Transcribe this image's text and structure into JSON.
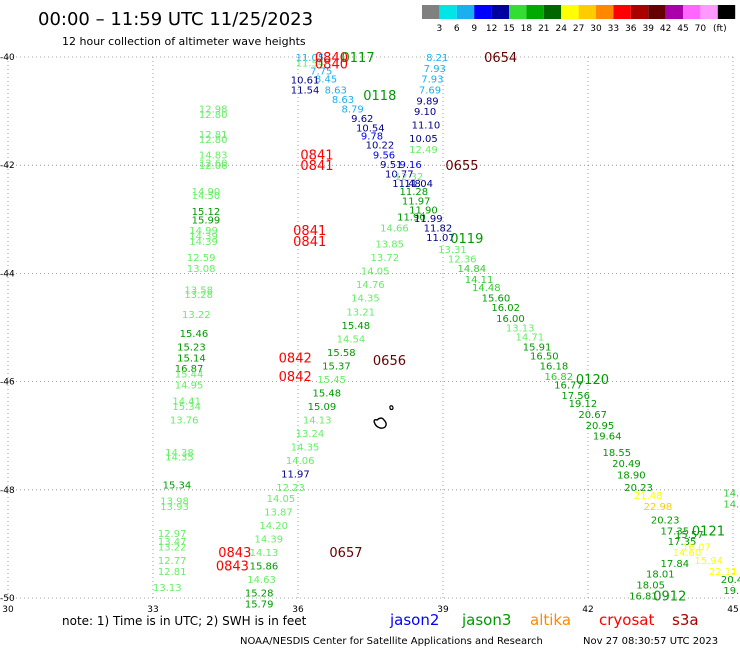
{
  "header": {
    "title": "00:00 – 11:59 UTC 11/25/2023",
    "subtitle": "12 hour collection of altimeter wave heights"
  },
  "legend": {
    "colors": [
      "#808080",
      "#00e5e5",
      "#1ab0f0",
      "#0000ff",
      "#0000a0",
      "#33dd33",
      "#00aa00",
      "#006600",
      "#ffff00",
      "#ffcc00",
      "#ff8800",
      "#ff0000",
      "#aa0000",
      "#660000",
      "#aa00aa",
      "#ff66ff",
      "#ff99ff",
      "#000000"
    ],
    "labels": [
      "3",
      "6",
      "9",
      "12",
      "15",
      "18",
      "21",
      "24",
      "27",
      "30",
      "33",
      "36",
      "39",
      "42",
      "45",
      "70",
      "(ft)"
    ]
  },
  "axes": {
    "x_ticks": [
      "30",
      "33",
      "36",
      "39",
      "42",
      "45"
    ],
    "y_ticks": [
      "-40",
      "-42",
      "-44",
      "-46",
      "-48",
      "-50"
    ]
  },
  "color_scale": {
    "c1": "#1ab0f0",
    "c2": "#0000ff",
    "c3": "#00008b",
    "c4": "#66ee66",
    "c5": "#33cc33",
    "c6": "#009900",
    "c7": "#ffff00",
    "c8": "#ffcc00",
    "c9": "#ff0000",
    "c10": "#660000"
  },
  "map": {
    "land_feature": "island",
    "wave_labels": [
      {
        "t": "11.05",
        "lon": 35.95,
        "lat": -40.0,
        "c": "c1"
      },
      {
        "t": "11.54",
        "lon": 35.95,
        "lat": -40.1,
        "c": "c4"
      },
      {
        "t": "7.75",
        "lon": 36.25,
        "lat": -40.25,
        "c": "c1"
      },
      {
        "t": "8.45",
        "lon": 36.35,
        "lat": -40.4,
        "c": "c1"
      },
      {
        "t": "10.61",
        "lon": 35.85,
        "lat": -40.42,
        "c": "c3"
      },
      {
        "t": "11.54",
        "lon": 35.85,
        "lat": -40.6,
        "c": "c3"
      },
      {
        "t": "8.63",
        "lon": 36.55,
        "lat": -40.6,
        "c": "c1"
      },
      {
        "t": "8.63",
        "lon": 36.7,
        "lat": -40.78,
        "c": "c1"
      },
      {
        "t": "8.79",
        "lon": 36.9,
        "lat": -40.95,
        "c": "c1"
      },
      {
        "t": "9.62",
        "lon": 37.1,
        "lat": -41.13,
        "c": "c3"
      },
      {
        "t": "10.54",
        "lon": 37.2,
        "lat": -41.3,
        "c": "c3"
      },
      {
        "t": "9.78",
        "lon": 37.3,
        "lat": -41.45,
        "c": "c2"
      },
      {
        "t": "10.22",
        "lon": 37.4,
        "lat": -41.62,
        "c": "c3"
      },
      {
        "t": "9.56",
        "lon": 37.55,
        "lat": -41.8,
        "c": "c2"
      },
      {
        "t": "9.51",
        "lon": 37.7,
        "lat": -41.98,
        "c": "c3"
      },
      {
        "t": "10.77",
        "lon": 37.8,
        "lat": -42.15,
        "c": "c3"
      },
      {
        "t": "11.48",
        "lon": 37.95,
        "lat": -42.33,
        "c": "c3"
      },
      {
        "t": "11.04",
        "lon": 38.2,
        "lat": -42.33,
        "c": "c3"
      },
      {
        "t": "11.28",
        "lon": 38.1,
        "lat": -42.48,
        "c": "c6"
      },
      {
        "t": "11.97",
        "lon": 38.15,
        "lat": -42.65,
        "c": "c6"
      },
      {
        "t": "11.90",
        "lon": 38.3,
        "lat": -42.82,
        "c": "c6"
      },
      {
        "t": "11.90",
        "lon": 38.05,
        "lat": -42.95,
        "c": "c6"
      },
      {
        "t": "11.99",
        "lon": 38.4,
        "lat": -42.98,
        "c": "c3"
      },
      {
        "t": "11.82",
        "lon": 38.6,
        "lat": -43.15,
        "c": "c3"
      },
      {
        "t": "14.66",
        "lon": 37.7,
        "lat": -43.15,
        "c": "c4"
      },
      {
        "t": "11.07",
        "lon": 38.65,
        "lat": -43.33,
        "c": "c3"
      },
      {
        "t": "13.85",
        "lon": 37.6,
        "lat": -43.45,
        "c": "c4"
      },
      {
        "t": "13.72",
        "lon": 37.5,
        "lat": -43.7,
        "c": "c4"
      },
      {
        "t": "13.31",
        "lon": 38.9,
        "lat": -43.55,
        "c": "c4"
      },
      {
        "t": "12.36",
        "lon": 39.1,
        "lat": -43.72,
        "c": "c4"
      },
      {
        "t": "14.05",
        "lon": 37.3,
        "lat": -43.95,
        "c": "c4"
      },
      {
        "t": "14.84",
        "lon": 39.3,
        "lat": -43.9,
        "c": "c5"
      },
      {
        "t": "14.11",
        "lon": 39.45,
        "lat": -44.1,
        "c": "c5"
      },
      {
        "t": "14.76",
        "lon": 37.2,
        "lat": -44.2,
        "c": "c4"
      },
      {
        "t": "14.48",
        "lon": 39.6,
        "lat": -44.25,
        "c": "c5"
      },
      {
        "t": "14.35",
        "lon": 37.1,
        "lat": -44.45,
        "c": "c4"
      },
      {
        "t": "15.60",
        "lon": 39.8,
        "lat": -44.45,
        "c": "c6"
      },
      {
        "t": "13.21",
        "lon": 37.0,
        "lat": -44.7,
        "c": "c4"
      },
      {
        "t": "16.02",
        "lon": 40.0,
        "lat": -44.62,
        "c": "c6"
      },
      {
        "t": "15.48",
        "lon": 36.9,
        "lat": -44.95,
        "c": "c6"
      },
      {
        "t": "16.00",
        "lon": 40.1,
        "lat": -44.82,
        "c": "c6"
      },
      {
        "t": "13.13",
        "lon": 40.3,
        "lat": -45.0,
        "c": "c4"
      },
      {
        "t": "14.54",
        "lon": 36.8,
        "lat": -45.2,
        "c": "c4"
      },
      {
        "t": "14.71",
        "lon": 40.5,
        "lat": -45.17,
        "c": "c4"
      },
      {
        "t": "15.58",
        "lon": 36.6,
        "lat": -45.45,
        "c": "c6"
      },
      {
        "t": "15.91",
        "lon": 40.65,
        "lat": -45.35,
        "c": "c6"
      },
      {
        "t": "15.37",
        "lon": 36.5,
        "lat": -45.7,
        "c": "c6"
      },
      {
        "t": "16.50",
        "lon": 40.8,
        "lat": -45.52,
        "c": "c6"
      },
      {
        "t": "15.45",
        "lon": 36.4,
        "lat": -45.95,
        "c": "c4"
      },
      {
        "t": "16.18",
        "lon": 41.0,
        "lat": -45.7,
        "c": "c6"
      },
      {
        "t": "16.82",
        "lon": 41.1,
        "lat": -45.9,
        "c": "c5"
      },
      {
        "t": "15.48",
        "lon": 36.3,
        "lat": -46.2,
        "c": "c6"
      },
      {
        "t": "16.77",
        "lon": 41.3,
        "lat": -46.05,
        "c": "c6"
      },
      {
        "t": "15.09",
        "lon": 36.2,
        "lat": -46.45,
        "c": "c6"
      },
      {
        "t": "17.56",
        "lon": 41.45,
        "lat": -46.25,
        "c": "c6"
      },
      {
        "t": "14.13",
        "lon": 36.1,
        "lat": -46.7,
        "c": "c4"
      },
      {
        "t": "19.12",
        "lon": 41.6,
        "lat": -46.4,
        "c": "c6"
      },
      {
        "t": "20.67",
        "lon": 41.8,
        "lat": -46.6,
        "c": "c6"
      },
      {
        "t": "13.24",
        "lon": 35.95,
        "lat": -46.95,
        "c": "c4"
      },
      {
        "t": "20.95",
        "lon": 41.95,
        "lat": -46.8,
        "c": "c6"
      },
      {
        "t": "14.35",
        "lon": 35.85,
        "lat": -47.2,
        "c": "c4"
      },
      {
        "t": "19.64",
        "lon": 42.1,
        "lat": -47.0,
        "c": "c6"
      },
      {
        "t": "14.06",
        "lon": 35.75,
        "lat": -47.45,
        "c": "c4"
      },
      {
        "t": "18.55",
        "lon": 42.3,
        "lat": -47.3,
        "c": "c6"
      },
      {
        "t": "11.97",
        "lon": 35.65,
        "lat": -47.7,
        "c": "c3"
      },
      {
        "t": "20.49",
        "lon": 42.5,
        "lat": -47.5,
        "c": "c6"
      },
      {
        "t": "12.23",
        "lon": 35.55,
        "lat": -47.95,
        "c": "c4"
      },
      {
        "t": "18.90",
        "lon": 42.6,
        "lat": -47.72,
        "c": "c6"
      },
      {
        "t": "14.05",
        "lon": 35.35,
        "lat": -48.15,
        "c": "c4"
      },
      {
        "t": "20.23",
        "lon": 42.75,
        "lat": -47.95,
        "c": "c6"
      },
      {
        "t": "13.87",
        "lon": 35.3,
        "lat": -48.4,
        "c": "c4"
      },
      {
        "t": "21.48",
        "lon": 42.95,
        "lat": -48.1,
        "c": "c7"
      },
      {
        "t": "22.98",
        "lon": 43.15,
        "lat": -48.3,
        "c": "c8"
      },
      {
        "t": "14.20",
        "lon": 35.2,
        "lat": -48.65,
        "c": "c4"
      },
      {
        "t": "20.23",
        "lon": 43.3,
        "lat": -48.55,
        "c": "c6"
      },
      {
        "t": "14.39",
        "lon": 35.1,
        "lat": -48.9,
        "c": "c4"
      },
      {
        "t": "17.35",
        "lon": 43.5,
        "lat": -48.75,
        "c": "c6"
      },
      {
        "t": "15.57",
        "lon": 43.8,
        "lat": -48.82,
        "c": "c6"
      },
      {
        "t": "14.13",
        "lon": 35.0,
        "lat": -49.15,
        "c": "c4"
      },
      {
        "t": "17.35",
        "lon": 43.65,
        "lat": -48.95,
        "c": "c6"
      },
      {
        "t": "16.07",
        "lon": 43.95,
        "lat": -49.05,
        "c": "c7"
      },
      {
        "t": "15.86",
        "lon": 35.0,
        "lat": -49.4,
        "c": "c6"
      },
      {
        "t": "14.60",
        "lon": 43.75,
        "lat": -49.15,
        "c": "c7"
      },
      {
        "t": "14.63",
        "lon": 34.95,
        "lat": -49.65,
        "c": "c4"
      },
      {
        "t": "17.84",
        "lon": 43.5,
        "lat": -49.35,
        "c": "c6"
      },
      {
        "t": "15.94",
        "lon": 44.2,
        "lat": -49.3,
        "c": "c7"
      },
      {
        "t": "18.01",
        "lon": 43.2,
        "lat": -49.55,
        "c": "c6"
      },
      {
        "t": "15.28",
        "lon": 34.9,
        "lat": -49.9,
        "c": "c6"
      },
      {
        "t": "22.11",
        "lon": 44.5,
        "lat": -49.5,
        "c": "c7"
      },
      {
        "t": "18.05",
        "lon": 43.0,
        "lat": -49.75,
        "c": "c6"
      },
      {
        "t": "20.46",
        "lon": 44.75,
        "lat": -49.65,
        "c": "c6"
      },
      {
        "t": "15.79",
        "lon": 34.9,
        "lat": -50.1,
        "c": "c6"
      },
      {
        "t": "16.81",
        "lon": 42.85,
        "lat": -49.95,
        "c": "c6"
      },
      {
        "t": "19.",
        "lon": 44.8,
        "lat": -49.85,
        "c": "c6"
      },
      {
        "t": "14.9",
        "lon": 44.8,
        "lat": -48.05,
        "c": "c5"
      },
      {
        "t": "14.5",
        "lon": 44.8,
        "lat": -48.25,
        "c": "c5"
      },
      {
        "t": "8.21",
        "lon": 38.65,
        "lat": -40.0,
        "c": "c1"
      },
      {
        "t": "7.93",
        "lon": 38.6,
        "lat": -40.2,
        "c": "c1"
      },
      {
        "t": "7.93",
        "lon": 38.55,
        "lat": -40.4,
        "c": "c1"
      },
      {
        "t": "7.69",
        "lon": 38.5,
        "lat": -40.6,
        "c": "c1"
      },
      {
        "t": "9.89",
        "lon": 38.45,
        "lat": -40.8,
        "c": "c3"
      },
      {
        "t": "9.10",
        "lon": 38.4,
        "lat": -41.0,
        "c": "c3"
      },
      {
        "t": "11.10",
        "lon": 38.35,
        "lat": -41.25,
        "c": "c3"
      },
      {
        "t": "10.05",
        "lon": 38.3,
        "lat": -41.5,
        "c": "c3"
      },
      {
        "t": "12.49",
        "lon": 38.3,
        "lat": -41.7,
        "c": "c4"
      },
      {
        "t": "9.16",
        "lon": 38.1,
        "lat": -41.98,
        "c": "c2"
      },
      {
        "t": "12.32",
        "lon": 38.0,
        "lat": -42.2,
        "c": "c4"
      },
      {
        "t": "12.80",
        "lon": 33.95,
        "lat": -41.05,
        "c": "c4"
      },
      {
        "t": "12.98",
        "lon": 33.95,
        "lat": -40.95,
        "c": "c4"
      },
      {
        "t": "12.81",
        "lon": 33.95,
        "lat": -41.42,
        "c": "c4"
      },
      {
        "t": "12.80",
        "lon": 33.95,
        "lat": -41.52,
        "c": "c4"
      },
      {
        "t": "14.83",
        "lon": 33.95,
        "lat": -41.8,
        "c": "c4"
      },
      {
        "t": "12.06",
        "lon": 33.95,
        "lat": -42.0,
        "c": "c4"
      },
      {
        "t": "12.60",
        "lon": 33.95,
        "lat": -41.95,
        "c": "c4"
      },
      {
        "t": "14.90",
        "lon": 33.8,
        "lat": -42.48,
        "c": "c4"
      },
      {
        "t": "14.50",
        "lon": 33.8,
        "lat": -42.55,
        "c": "c4"
      },
      {
        "t": "15.12",
        "lon": 33.8,
        "lat": -42.85,
        "c": "c6"
      },
      {
        "t": "15.99",
        "lon": 33.8,
        "lat": -43.0,
        "c": "c6"
      },
      {
        "t": "14.99",
        "lon": 33.75,
        "lat": -43.2,
        "c": "c4"
      },
      {
        "t": "14.39",
        "lon": 33.75,
        "lat": -43.3,
        "c": "c4"
      },
      {
        "t": "14.39",
        "lon": 33.75,
        "lat": -43.4,
        "c": "c4"
      },
      {
        "t": "12.59",
        "lon": 33.7,
        "lat": -43.7,
        "c": "c4"
      },
      {
        "t": "13.08",
        "lon": 33.7,
        "lat": -43.9,
        "c": "c4"
      },
      {
        "t": "13.58",
        "lon": 33.65,
        "lat": -44.3,
        "c": "c4"
      },
      {
        "t": "13.28",
        "lon": 33.65,
        "lat": -44.38,
        "c": "c4"
      },
      {
        "t": "13.22",
        "lon": 33.6,
        "lat": -44.75,
        "c": "c4"
      },
      {
        "t": "15.46",
        "lon": 33.55,
        "lat": -45.1,
        "c": "c6"
      },
      {
        "t": "15.23",
        "lon": 33.5,
        "lat": -45.35,
        "c": "c6"
      },
      {
        "t": "15.14",
        "lon": 33.5,
        "lat": -45.55,
        "c": "c6"
      },
      {
        "t": "16.87",
        "lon": 33.45,
        "lat": -45.75,
        "c": "c6"
      },
      {
        "t": "15.44",
        "lon": 33.45,
        "lat": -45.85,
        "c": "c4"
      },
      {
        "t": "14.95",
        "lon": 33.45,
        "lat": -46.05,
        "c": "c4"
      },
      {
        "t": "14.41",
        "lon": 33.4,
        "lat": -46.35,
        "c": "c4"
      },
      {
        "t": "15.34",
        "lon": 33.4,
        "lat": -46.45,
        "c": "c4"
      },
      {
        "t": "13.76",
        "lon": 33.35,
        "lat": -46.7,
        "c": "c4"
      },
      {
        "t": "14.38",
        "lon": 33.25,
        "lat": -47.3,
        "c": "c4"
      },
      {
        "t": "14.35",
        "lon": 33.25,
        "lat": -47.38,
        "c": "c4"
      },
      {
        "t": "15.34",
        "lon": 33.2,
        "lat": -47.9,
        "c": "c6"
      },
      {
        "t": "13.98",
        "lon": 33.15,
        "lat": -48.2,
        "c": "c4"
      },
      {
        "t": "13.93",
        "lon": 33.15,
        "lat": -48.3,
        "c": "c4"
      },
      {
        "t": "12.97",
        "lon": 33.1,
        "lat": -48.8,
        "c": "c4"
      },
      {
        "t": "13.47",
        "lon": 33.1,
        "lat": -48.95,
        "c": "c4"
      },
      {
        "t": "13.22",
        "lon": 33.1,
        "lat": -49.05,
        "c": "c4"
      },
      {
        "t": "12.77",
        "lon": 33.1,
        "lat": -49.3,
        "c": "c4"
      },
      {
        "t": "12.81",
        "lon": 33.1,
        "lat": -49.5,
        "c": "c4"
      },
      {
        "t": "13.13",
        "lon": 33.0,
        "lat": -49.8,
        "c": "c4"
      }
    ],
    "pass_labels": [
      {
        "t": "0840",
        "lon": 36.35,
        "lat": -40.0,
        "c": "c9"
      },
      {
        "t": "0117",
        "lon": 36.9,
        "lat": -40.0,
        "c": "c6"
      },
      {
        "t": "0840",
        "lon": 36.35,
        "lat": -40.12,
        "c": "c9"
      },
      {
        "t": "0654",
        "lon": 39.85,
        "lat": -40.0,
        "c": "c10"
      },
      {
        "t": "0118",
        "lon": 37.35,
        "lat": -40.7,
        "c": "c6"
      },
      {
        "t": "0841",
        "lon": 36.05,
        "lat": -41.8,
        "c": "c9"
      },
      {
        "t": "0841",
        "lon": 36.05,
        "lat": -42.0,
        "c": "c9"
      },
      {
        "t": "0655",
        "lon": 39.05,
        "lat": -42.0,
        "c": "c10"
      },
      {
        "t": "0841",
        "lon": 35.9,
        "lat": -43.2,
        "c": "c9"
      },
      {
        "t": "0841",
        "lon": 35.9,
        "lat": -43.4,
        "c": "c9"
      },
      {
        "t": "0119",
        "lon": 39.15,
        "lat": -43.35,
        "c": "c6"
      },
      {
        "t": "0842",
        "lon": 35.6,
        "lat": -45.55,
        "c": "c9"
      },
      {
        "t": "0842",
        "lon": 35.6,
        "lat": -45.9,
        "c": "c9"
      },
      {
        "t": "0656",
        "lon": 37.55,
        "lat": -45.6,
        "c": "c10"
      },
      {
        "t": "0120",
        "lon": 41.75,
        "lat": -45.95,
        "c": "c6"
      },
      {
        "t": "0843",
        "lon": 34.35,
        "lat": -49.15,
        "c": "c9"
      },
      {
        "t": "0843",
        "lon": 34.3,
        "lat": -49.4,
        "c": "c9"
      },
      {
        "t": "0657",
        "lon": 36.65,
        "lat": -49.15,
        "c": "c10"
      },
      {
        "t": "0121",
        "lon": 44.15,
        "lat": -48.75,
        "c": "c6"
      },
      {
        "t": "0912",
        "lon": 43.35,
        "lat": -49.95,
        "c": "c6"
      }
    ]
  },
  "footer": {
    "note": "note: 1) Time is in UTC; 2) SWH is in feet",
    "satellites": [
      {
        "name": "jason2",
        "color": "#0000ff"
      },
      {
        "name": "jason3",
        "color": "#009900"
      },
      {
        "name": "altika",
        "color": "#ff8800"
      },
      {
        "name": "cryosat",
        "color": "#ff0000"
      },
      {
        "name": "s3a",
        "color": "#aa0000"
      }
    ],
    "credit": "NOAA/NESDIS Center for Satellite Applications and Research",
    "timestamp": "Nov 27 08:30:57 UTC 2023"
  }
}
